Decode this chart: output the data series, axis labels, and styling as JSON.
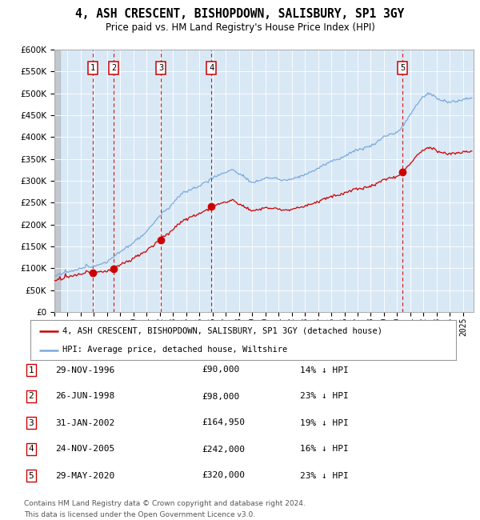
{
  "title": "4, ASH CRESCENT, BISHOPDOWN, SALISBURY, SP1 3GY",
  "subtitle": "Price paid vs. HM Land Registry's House Price Index (HPI)",
  "ylim": [
    0,
    600000
  ],
  "yticks": [
    0,
    50000,
    100000,
    150000,
    200000,
    250000,
    300000,
    350000,
    400000,
    450000,
    500000,
    550000,
    600000
  ],
  "xlim_start": 1994.0,
  "xlim_end": 2025.8,
  "plot_background": "#d9e8f5",
  "hpi_color": "#7aaadd",
  "price_color": "#cc0000",
  "marker_color": "#cc0000",
  "vline_color": "#cc0000",
  "grid_color": "#ffffff",
  "transactions": [
    {
      "num": 1,
      "date": "29-NOV-1996",
      "price": 90000,
      "pct": "14%",
      "x_year": 1996.91
    },
    {
      "num": 2,
      "date": "26-JUN-1998",
      "price": 98000,
      "pct": "23%",
      "x_year": 1998.49
    },
    {
      "num": 3,
      "date": "31-JAN-2002",
      "price": 164950,
      "pct": "19%",
      "x_year": 2002.08
    },
    {
      "num": 4,
      "date": "24-NOV-2005",
      "price": 242000,
      "pct": "16%",
      "x_year": 2005.9
    },
    {
      "num": 5,
      "date": "29-MAY-2020",
      "price": 320000,
      "pct": "23%",
      "x_year": 2020.41
    }
  ],
  "legend_entries": [
    "4, ASH CRESCENT, BISHOPDOWN, SALISBURY, SP1 3GY (detached house)",
    "HPI: Average price, detached house, Wiltshire"
  ],
  "footer_lines": [
    "Contains HM Land Registry data © Crown copyright and database right 2024.",
    "This data is licensed under the Open Government Licence v3.0."
  ]
}
